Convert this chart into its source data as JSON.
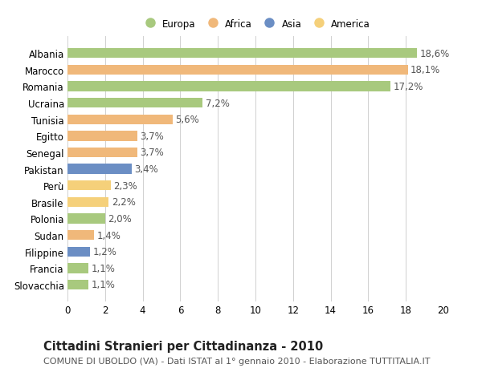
{
  "categories": [
    "Slovacchia",
    "Francia",
    "Filippine",
    "Sudan",
    "Polonia",
    "Brasile",
    "Perù",
    "Pakistan",
    "Senegal",
    "Egitto",
    "Tunisia",
    "Ucraina",
    "Romania",
    "Marocco",
    "Albania"
  ],
  "values": [
    1.1,
    1.1,
    1.2,
    1.4,
    2.0,
    2.2,
    2.3,
    3.4,
    3.7,
    3.7,
    5.6,
    7.2,
    17.2,
    18.1,
    18.6
  ],
  "labels": [
    "1,1%",
    "1,1%",
    "1,2%",
    "1,4%",
    "2,0%",
    "2,2%",
    "2,3%",
    "3,4%",
    "3,7%",
    "3,7%",
    "5,6%",
    "7,2%",
    "17,2%",
    "18,1%",
    "18,6%"
  ],
  "continents": [
    "Europa",
    "Europa",
    "Asia",
    "Africa",
    "Europa",
    "America",
    "America",
    "Asia",
    "Africa",
    "Africa",
    "Africa",
    "Europa",
    "Europa",
    "Africa",
    "Europa"
  ],
  "continent_colors": {
    "Europa": "#a8c97e",
    "Africa": "#f0b87a",
    "Asia": "#6b8ec4",
    "America": "#f5d07a"
  },
  "legend_order": [
    "Europa",
    "Africa",
    "Asia",
    "America"
  ],
  "xlim": [
    0,
    20
  ],
  "xticks": [
    0,
    2,
    4,
    6,
    8,
    10,
    12,
    14,
    16,
    18,
    20
  ],
  "title": "Cittadini Stranieri per Cittadinanza - 2010",
  "subtitle": "COMUNE DI UBOLDO (VA) - Dati ISTAT al 1° gennaio 2010 - Elaborazione TUTTITALIA.IT",
  "background_color": "#ffffff",
  "grid_color": "#d0d0d0",
  "bar_height": 0.6,
  "label_fontsize": 8.5,
  "tick_fontsize": 8.5,
  "title_fontsize": 10.5,
  "subtitle_fontsize": 8.0
}
